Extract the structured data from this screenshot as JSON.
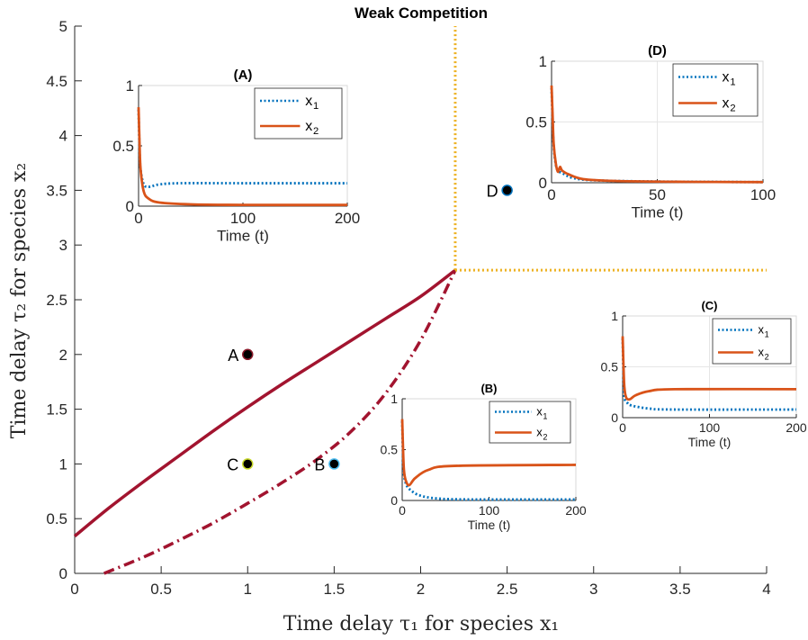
{
  "chart_data": {
    "type": "line",
    "title": "Weak Competition",
    "xlabel": "Time delay τ₁ for species x₁",
    "ylabel": "Time delay τ₂ for species x₂",
    "xlim": [
      0,
      4
    ],
    "ylim": [
      0,
      5
    ],
    "xticks": [
      "0",
      "0.5",
      "1",
      "1.5",
      "2",
      "2.5",
      "3",
      "3.5",
      "4"
    ],
    "yticks": [
      "0",
      "0.5",
      "1",
      "1.5",
      "2",
      "2.5",
      "3",
      "3.5",
      "4",
      "4.5",
      "5"
    ],
    "grid": false,
    "colors": {
      "boundary": "#a2142f",
      "threshold": "#edb120",
      "x1": "#0072bd",
      "x2": "#d95319"
    },
    "series": [
      {
        "style": "solid",
        "x": [
          0.0,
          0.2,
          0.4,
          0.6,
          0.8,
          1.0,
          1.2,
          1.4,
          1.6,
          1.8,
          2.0,
          2.2
        ],
        "y": [
          0.34,
          0.6,
          0.84,
          1.07,
          1.3,
          1.52,
          1.73,
          1.93,
          2.13,
          2.33,
          2.53,
          2.77
        ]
      },
      {
        "style": "dashdot",
        "x": [
          0.17,
          0.4,
          0.6,
          0.8,
          1.0,
          1.2,
          1.4,
          1.6,
          1.8,
          2.0,
          2.2
        ],
        "y": [
          0.0,
          0.15,
          0.3,
          0.46,
          0.64,
          0.83,
          1.04,
          1.3,
          1.65,
          2.13,
          2.77
        ]
      },
      {
        "style": "dotted",
        "x": [
          2.2,
          2.2
        ],
        "y": [
          2.77,
          5.0
        ]
      },
      {
        "style": "dotted",
        "x": [
          2.2,
          4.0
        ],
        "y": [
          2.77,
          2.77
        ]
      }
    ],
    "points": [
      {
        "label": "A",
        "x": 1.0,
        "y": 2.0,
        "color": "#8b1a2b"
      },
      {
        "label": "C",
        "x": 1.0,
        "y": 1.0,
        "color": "#c9d92a"
      },
      {
        "label": "B",
        "x": 1.5,
        "y": 1.0,
        "color": "#4cbdf0"
      },
      {
        "label": "D",
        "x": 2.5,
        "y": 3.5,
        "color": "#0072bd"
      }
    ],
    "insets": [
      {
        "title": "(A)",
        "xlabel": "Time (t)",
        "xlim": [
          0,
          200
        ],
        "ylim": [
          0,
          1
        ],
        "xticks": [
          "0",
          "100",
          "200"
        ],
        "yticks": [
          "0",
          "0.5",
          "1"
        ],
        "legend": [
          "x",
          "x"
        ],
        "legend_sub": [
          "1",
          "2"
        ],
        "grid": false,
        "x1": [
          [
            0,
            0.8
          ],
          [
            1,
            0.45
          ],
          [
            2,
            0.3
          ],
          [
            5,
            0.18
          ],
          [
            10,
            0.16
          ],
          [
            20,
            0.18
          ],
          [
            40,
            0.19
          ],
          [
            100,
            0.19
          ],
          [
            200,
            0.19
          ]
        ],
        "x2": [
          [
            0,
            0.82
          ],
          [
            1,
            0.5
          ],
          [
            2,
            0.3
          ],
          [
            5,
            0.12
          ],
          [
            10,
            0.06
          ],
          [
            20,
            0.03
          ],
          [
            50,
            0.015
          ],
          [
            100,
            0.01
          ],
          [
            200,
            0.01
          ]
        ]
      },
      {
        "title": "(D)",
        "xlabel": "Time (t)",
        "xlim": [
          0,
          100
        ],
        "ylim": [
          0,
          1
        ],
        "xticks": [
          "0",
          "50",
          "100"
        ],
        "yticks": [
          "0",
          "0.5",
          "1"
        ],
        "legend": [
          "x",
          "x"
        ],
        "legend_sub": [
          "1",
          "2"
        ],
        "grid": true,
        "x1": [
          [
            0,
            0.78
          ],
          [
            0.5,
            0.5
          ],
          [
            1,
            0.3
          ],
          [
            2,
            0.15
          ],
          [
            3,
            0.1
          ],
          [
            5,
            0.08
          ],
          [
            10,
            0.04
          ],
          [
            20,
            0.02
          ],
          [
            50,
            0.01
          ],
          [
            100,
            0.005
          ]
        ],
        "x2": [
          [
            0,
            0.8
          ],
          [
            0.5,
            0.55
          ],
          [
            1,
            0.32
          ],
          [
            2,
            0.16
          ],
          [
            3,
            0.09
          ],
          [
            4,
            0.13
          ],
          [
            5,
            0.1
          ],
          [
            8,
            0.07
          ],
          [
            15,
            0.03
          ],
          [
            30,
            0.015
          ],
          [
            60,
            0.008
          ],
          [
            100,
            0.005
          ]
        ]
      },
      {
        "title": "(C)",
        "xlabel": "Time (t)",
        "xlim": [
          0,
          200
        ],
        "ylim": [
          0,
          1
        ],
        "xticks": [
          "0",
          "100",
          "200"
        ],
        "yticks": [
          "0",
          "0.5",
          "1"
        ],
        "legend": [
          "x",
          "x"
        ],
        "legend_sub": [
          "1",
          "2"
        ],
        "grid": true,
        "x1": [
          [
            0,
            0.78
          ],
          [
            1,
            0.4
          ],
          [
            2,
            0.2
          ],
          [
            5,
            0.15
          ],
          [
            10,
            0.12
          ],
          [
            30,
            0.09
          ],
          [
            60,
            0.08
          ],
          [
            200,
            0.08
          ]
        ],
        "x2": [
          [
            0,
            0.8
          ],
          [
            1,
            0.5
          ],
          [
            2,
            0.3
          ],
          [
            4,
            0.2
          ],
          [
            8,
            0.18
          ],
          [
            15,
            0.22
          ],
          [
            30,
            0.26
          ],
          [
            60,
            0.28
          ],
          [
            200,
            0.28
          ]
        ]
      },
      {
        "title": "(B)",
        "xlabel": "Time (t)",
        "xlim": [
          0,
          200
        ],
        "ylim": [
          0,
          1
        ],
        "xticks": [
          "0",
          "100",
          "200"
        ],
        "yticks": [
          "0",
          "0.5",
          "1"
        ],
        "legend": [
          "x",
          "x"
        ],
        "legend_sub": [
          "1",
          "2"
        ],
        "grid": false,
        "x1": [
          [
            0,
            0.78
          ],
          [
            1,
            0.4
          ],
          [
            2,
            0.25
          ],
          [
            5,
            0.15
          ],
          [
            10,
            0.1
          ],
          [
            20,
            0.05
          ],
          [
            40,
            0.02
          ],
          [
            80,
            0.01
          ],
          [
            200,
            0.01
          ]
        ],
        "x2": [
          [
            0,
            0.8
          ],
          [
            1,
            0.5
          ],
          [
            2,
            0.3
          ],
          [
            4,
            0.2
          ],
          [
            8,
            0.15
          ],
          [
            15,
            0.22
          ],
          [
            30,
            0.3
          ],
          [
            60,
            0.34
          ],
          [
            200,
            0.35
          ]
        ]
      }
    ]
  }
}
